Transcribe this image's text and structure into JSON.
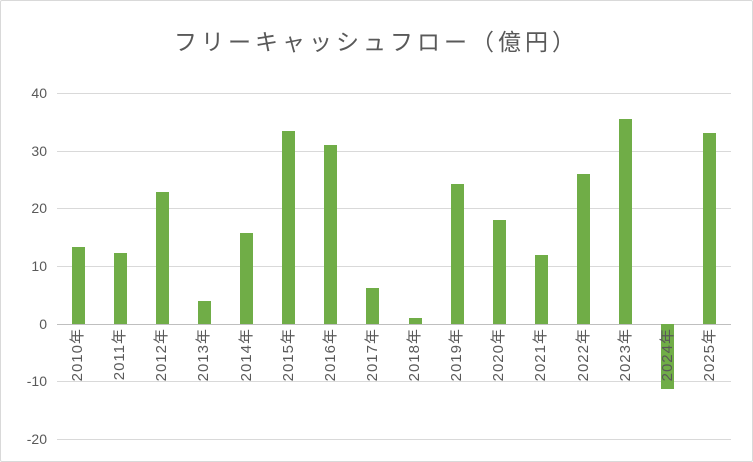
{
  "chart_data": {
    "type": "bar",
    "title": "フリーキャッシュフロー（億円）",
    "categories": [
      "2010年",
      "2011年",
      "2012年",
      "2013年",
      "2014年",
      "2015年",
      "2016年",
      "2017年",
      "2018年",
      "2019年",
      "2020年",
      "2021年",
      "2022年",
      "2023年",
      "2024年",
      "2025年"
    ],
    "values": [
      13.3,
      12.2,
      22.8,
      4.0,
      15.8,
      33.5,
      31.0,
      6.2,
      1.0,
      24.3,
      17.9,
      12.0,
      25.9,
      35.5,
      -11.4,
      33.0
    ],
    "xlabel": "",
    "ylabel": "",
    "ylim": [
      -20,
      40
    ],
    "yticks": [
      40,
      30,
      20,
      10,
      0,
      -10,
      -20
    ],
    "grid": true,
    "legend": "none",
    "x_label_rotation": -90,
    "colors": {
      "bar": "#70AD47",
      "gridline": "#D9D9D9",
      "axis_line": "#BFBFBF",
      "tick_label": "#595959",
      "title": "#595959",
      "background": "#FFFFFF",
      "border": "#D9D9D9"
    }
  }
}
